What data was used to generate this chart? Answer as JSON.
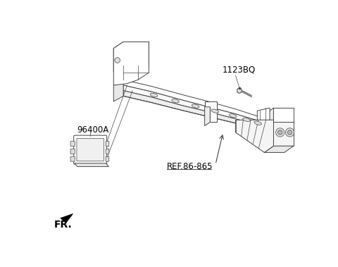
{
  "bg_color": "#ffffff",
  "lc": "#444444",
  "lc2": "#666666",
  "label_1123BQ": "1123BQ",
  "label_96400A": "96400A",
  "label_ref": "REF.86-865",
  "label_fr": "FR.",
  "fs": 8.5,
  "fs_fr": 10
}
